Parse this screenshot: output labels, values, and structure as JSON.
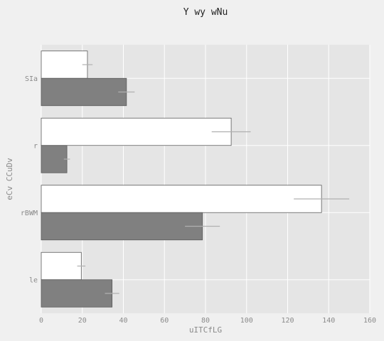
{
  "chart_data": {
    "type": "bar",
    "orientation": "horizontal",
    "title": "Y wy wNu",
    "xlabel": "uITCfLG",
    "ylabel": "eCv CCuDv",
    "xlim": [
      0,
      160
    ],
    "xticks": [
      0,
      20,
      40,
      60,
      80,
      100,
      120,
      140,
      160
    ],
    "categories": [
      "le",
      "rBWM",
      "r",
      "SIa"
    ],
    "grid": true,
    "series": [
      {
        "color": "#ffffff",
        "values": [
          19.5,
          136.5,
          92.5,
          22.5
        ],
        "errors": [
          2,
          13.5,
          9.5,
          2.5
        ]
      },
      {
        "color": "#808080",
        "values": [
          34.5,
          78.5,
          12.5,
          41.5
        ],
        "errors": [
          3.5,
          8.5,
          1.5,
          4
        ]
      }
    ],
    "colors": {
      "background": "#f0f0f0",
      "plot_area": "#e5e5e5",
      "grid": "#ffffff",
      "error_bar": "#b0b0b0"
    }
  }
}
